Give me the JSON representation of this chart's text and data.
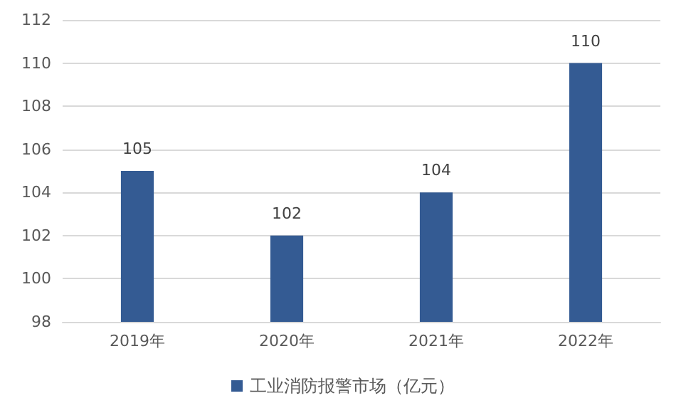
{
  "chart_data": {
    "type": "bar",
    "categories": [
      "2019年",
      "2020年",
      "2021年",
      "2022年"
    ],
    "series": [
      {
        "name": "工业消防报警市场（亿元）",
        "color": "#345b93",
        "values": [
          105,
          102,
          104,
          110
        ]
      }
    ],
    "ylim": [
      98,
      112
    ],
    "yticks": [
      98,
      100,
      102,
      104,
      106,
      108,
      110,
      112
    ],
    "grid": "y",
    "legend": "bottom",
    "data_labels": true
  }
}
